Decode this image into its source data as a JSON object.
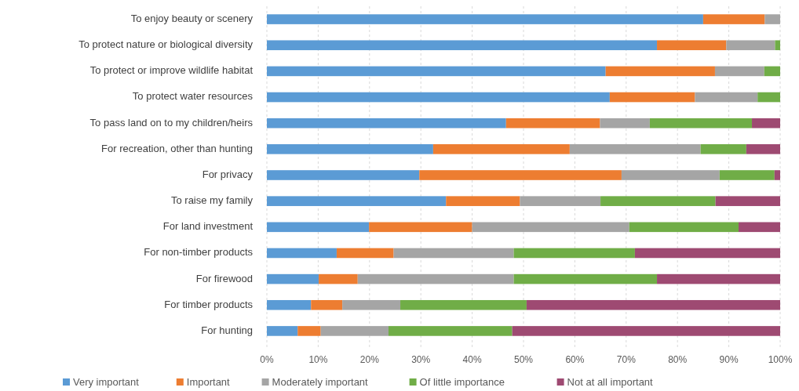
{
  "chart_data": {
    "type": "bar",
    "orientation": "horizontal",
    "stacked": true,
    "grid": "x",
    "legend": "bottom",
    "categories": [
      "To enjoy beauty or scenery",
      "To protect nature or biological diversity",
      "To protect or improve wildlife habitat",
      "To protect water resources",
      "To pass land on to my children/heirs",
      "For recreation, other than hunting",
      "For privacy",
      "To raise my family",
      "For land investment",
      "For non-timber products",
      "For firewood",
      "For timber products",
      "For hunting"
    ],
    "xlim": [
      0,
      100
    ],
    "xticks": [
      {
        "value": 0,
        "label": "0%"
      },
      {
        "value": 10,
        "label": "10%"
      },
      {
        "value": 20,
        "label": "20%"
      },
      {
        "value": 30,
        "label": "30%"
      },
      {
        "value": 40,
        "label": "40%"
      },
      {
        "value": 50,
        "label": "50%"
      },
      {
        "value": 60,
        "label": "60%"
      },
      {
        "value": 70,
        "label": "70%"
      },
      {
        "value": 80,
        "label": "80%"
      },
      {
        "value": 90,
        "label": "90%"
      },
      {
        "value": 100,
        "label": "100%"
      }
    ],
    "series": [
      {
        "name": "Very important",
        "color": "#5b9bd5",
        "values": [
          85,
          76,
          66,
          66.8,
          46.6,
          32.4,
          29.7,
          34.9,
          19.9,
          13.6,
          10.1,
          8.6,
          6
        ]
      },
      {
        "name": "Important",
        "color": "#ed7d31",
        "values": [
          12,
          13.5,
          21.3,
          16.6,
          18.3,
          26.6,
          39.4,
          14.4,
          20.1,
          11.1,
          7.6,
          6.1,
          4.5
        ]
      },
      {
        "name": "Moderately important",
        "color": "#a5a5a5",
        "values": [
          3,
          9.5,
          9.6,
          12.2,
          9.7,
          25.5,
          19.1,
          15.7,
          30.6,
          23.4,
          30.4,
          11.3,
          13.2
        ]
      },
      {
        "name": "Of little importance",
        "color": "#70ad47",
        "values": [
          0,
          1,
          3.1,
          4.4,
          19.9,
          8.9,
          10.7,
          22.4,
          21.3,
          23.6,
          27.9,
          24.6,
          24.1
        ]
      },
      {
        "name": "Not at all important",
        "color": "#9e4a72",
        "values": [
          0,
          0,
          0,
          0,
          5.5,
          6.6,
          1.1,
          12.6,
          8.1,
          28.3,
          24,
          49.4,
          52.2
        ]
      }
    ]
  }
}
